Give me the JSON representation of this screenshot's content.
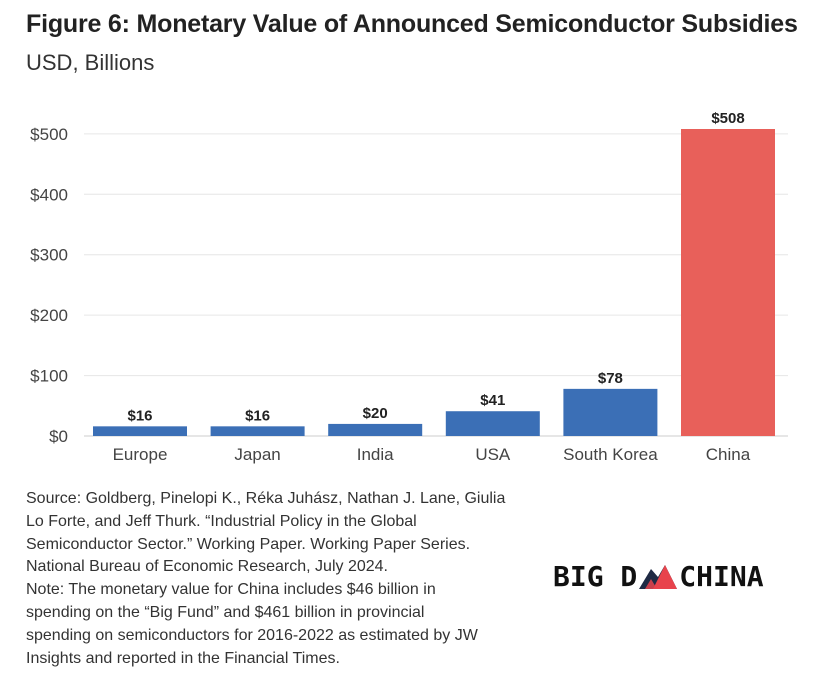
{
  "title": "Figure 6: Monetary Value of Announced Semiconductor Subsidies",
  "subtitle": "USD, Billions",
  "chart_data": {
    "type": "bar",
    "categories": [
      "Europe",
      "Japan",
      "India",
      "USA",
      "South Korea",
      "China"
    ],
    "values": [
      16,
      16,
      20,
      41,
      78,
      508
    ],
    "data_labels": [
      "$16",
      "$16",
      "$20",
      "$41",
      "$78",
      "$508"
    ],
    "colors": [
      "#3b6fb6",
      "#3b6fb6",
      "#3b6fb6",
      "#3b6fb6",
      "#3b6fb6",
      "#e8605a"
    ],
    "ylim": [
      0,
      508
    ],
    "yticks": [
      0,
      100,
      200,
      300,
      400,
      500
    ],
    "ytick_labels": [
      "$0",
      "$100",
      "$200",
      "$300",
      "$400",
      "$500"
    ],
    "grid": true
  },
  "source_lines": [
    "Source: Goldberg, Pinelopi K., Réka Juhász, Nathan J. Lane, Giulia",
    "Lo Forte, and Jeff Thurk. “Industrial Policy in the Global",
    "Semiconductor Sector.” Working Paper. Working Paper Series.",
    "National Bureau of Economic Research, July 2024.",
    "Note: The monetary value for China includes $46 billion in",
    "spending on the “Big Fund” and $461 billion in provincial",
    "spending on semiconductors for 2016-2022 as estimated by JW",
    "Insights and reported in the Financial Times."
  ],
  "logo": {
    "text_left": "BIG D",
    "text_mid": "A",
    "text_right": " CHINA",
    "colors": {
      "text": "#111111",
      "mountain_dark": "#1f2a44",
      "mountain_red": "#e8434c"
    }
  }
}
